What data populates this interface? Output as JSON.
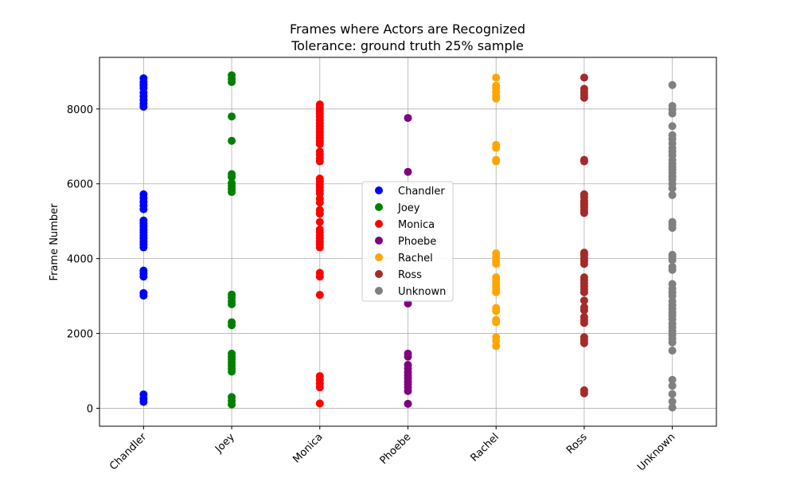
{
  "chart_data": {
    "type": "scatter",
    "title": "Frames where Actors are Recognized",
    "subtitle": "Tolerance: ground truth 25% sample",
    "xlabel": "",
    "ylabel": "Frame Number",
    "categories": [
      "Chandler",
      "Joey",
      "Monica",
      "Phoebe",
      "Rachel",
      "Ross",
      "Unknown"
    ],
    "yticks": [
      0,
      2000,
      4000,
      6000,
      8000
    ],
    "ylim": [
      -480,
      9380
    ],
    "grid": true,
    "legend_position": "center",
    "series": [
      {
        "name": "Chandler",
        "color": "#0000ff",
        "values": [
          170,
          260,
          370,
          3010,
          3080,
          3520,
          3600,
          3680,
          4300,
          4380,
          4460,
          4540,
          4620,
          4700,
          4780,
          4860,
          4940,
          5020,
          5320,
          5420,
          5520,
          5620,
          5720,
          8060,
          8140,
          8240,
          8340,
          8440,
          8560,
          8640,
          8720,
          8820
        ]
      },
      {
        "name": "Joey",
        "color": "#008000",
        "values": [
          100,
          200,
          300,
          980,
          1060,
          1140,
          1220,
          1300,
          1380,
          1460,
          2220,
          2300,
          2780,
          2860,
          2960,
          3040,
          5780,
          5860,
          5940,
          6020,
          6180,
          6260,
          7150,
          7800,
          8720,
          8800,
          8900
        ]
      },
      {
        "name": "Monica",
        "color": "#ff0000",
        "values": [
          130,
          560,
          660,
          760,
          860,
          3030,
          3520,
          3620,
          4300,
          4380,
          4460,
          4540,
          4620,
          4700,
          4780,
          4980,
          5200,
          5300,
          5500,
          5600,
          5740,
          5820,
          5900,
          5980,
          6060,
          6140,
          6600,
          6680,
          6780,
          6860,
          7060,
          7140,
          7220,
          7300,
          7380,
          7460,
          7540,
          7620,
          7700,
          7800,
          7880,
          7960,
          8040,
          8120
        ]
      },
      {
        "name": "Phoebe",
        "color": "#800080",
        "values": [
          120,
          460,
          560,
          640,
          720,
          800,
          880,
          960,
          1060,
          1160,
          1380,
          1460,
          2800,
          6320,
          7760
        ]
      },
      {
        "name": "Rachel",
        "color": "#ffa500",
        "values": [
          1660,
          1800,
          1900,
          2300,
          2360,
          2600,
          2680,
          3100,
          3180,
          3260,
          3340,
          3420,
          3500,
          3860,
          3940,
          4040,
          4140,
          6600,
          6640,
          6960,
          7040,
          8280,
          8360,
          8460,
          8560,
          8620,
          8840
        ]
      },
      {
        "name": "Ross",
        "color": "#a52a2a",
        "values": [
          400,
          480,
          1740,
          1820,
          1900,
          2280,
          2360,
          2440,
          2620,
          2700,
          2880,
          3100,
          3180,
          3260,
          3340,
          3420,
          3500,
          3860,
          3940,
          4020,
          4100,
          4160,
          5220,
          5300,
          5380,
          5460,
          5540,
          5640,
          5720,
          6600,
          6640,
          8300,
          8380,
          8460,
          8540,
          8840
        ]
      },
      {
        "name": "Unknown",
        "color": "#808080",
        "values": [
          20,
          180,
          380,
          600,
          760,
          1540,
          1760,
          1860,
          1960,
          2060,
          2160,
          2260,
          2380,
          2480,
          2560,
          2660,
          2760,
          2860,
          3000,
          3100,
          3200,
          3320,
          3700,
          3780,
          3960,
          4040,
          4100,
          4820,
          4900,
          4980,
          5700,
          5880,
          6000,
          6120,
          6200,
          6300,
          6380,
          6460,
          6540,
          6640,
          6760,
          6860,
          6960,
          7080,
          7200,
          7300,
          7540,
          7880,
          7980,
          8080,
          8640
        ]
      }
    ]
  }
}
